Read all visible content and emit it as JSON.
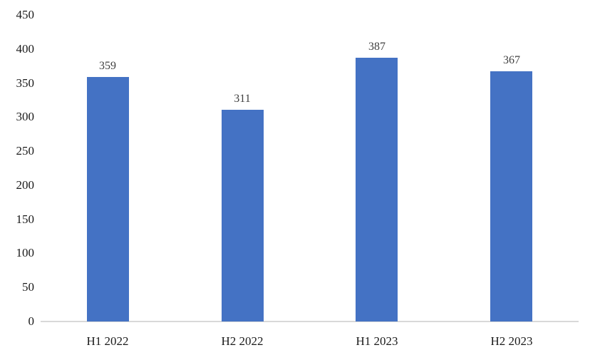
{
  "chart_data": {
    "type": "bar",
    "categories": [
      "H1 2022",
      "H2 2022",
      "H1 2023",
      "H2 2023"
    ],
    "values": [
      359,
      311,
      387,
      367
    ],
    "title": "",
    "xlabel": "",
    "ylabel": "",
    "ylim": [
      0,
      450
    ],
    "ytick_step": 50,
    "ytick_labels": [
      "0",
      "50",
      "100",
      "150",
      "200",
      "250",
      "300",
      "350",
      "400",
      "450"
    ],
    "grid": false,
    "legend": null,
    "colors": {
      "bar": "#4472C4",
      "axis_line": "#D9D9D9",
      "value_label": "#404040",
      "tick_label": "#1a1a1a"
    }
  }
}
